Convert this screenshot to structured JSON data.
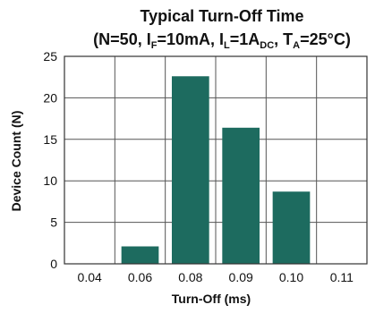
{
  "chart_data": {
    "type": "bar",
    "title_line1": "Typical Turn-Off Time",
    "title_line2_parts": [
      {
        "text": "(N=50, I"
      },
      {
        "text": "F",
        "sub": true
      },
      {
        "text": "=10mA, I"
      },
      {
        "text": "L",
        "sub": true
      },
      {
        "text": "=1A"
      },
      {
        "text": "DC",
        "sub": true
      },
      {
        "text": ", T"
      },
      {
        "text": "A",
        "sub": true
      },
      {
        "text": "=25°C)"
      }
    ],
    "categories": [
      "0.04",
      "0.06",
      "0.08",
      "0.09",
      "0.10",
      "0.11"
    ],
    "values": [
      0,
      2.1,
      22.6,
      16.4,
      8.7,
      0
    ],
    "xlabel": "Turn-Off (ms)",
    "ylabel": "Device Count (N)",
    "ylim": [
      0,
      25
    ],
    "yticks": [
      0,
      5,
      10,
      15,
      20,
      25
    ],
    "grid": true,
    "bar_color": "#1d6b5f",
    "grid_color": "#555555",
    "frame_color": "#333333",
    "text_color": "#111111"
  }
}
